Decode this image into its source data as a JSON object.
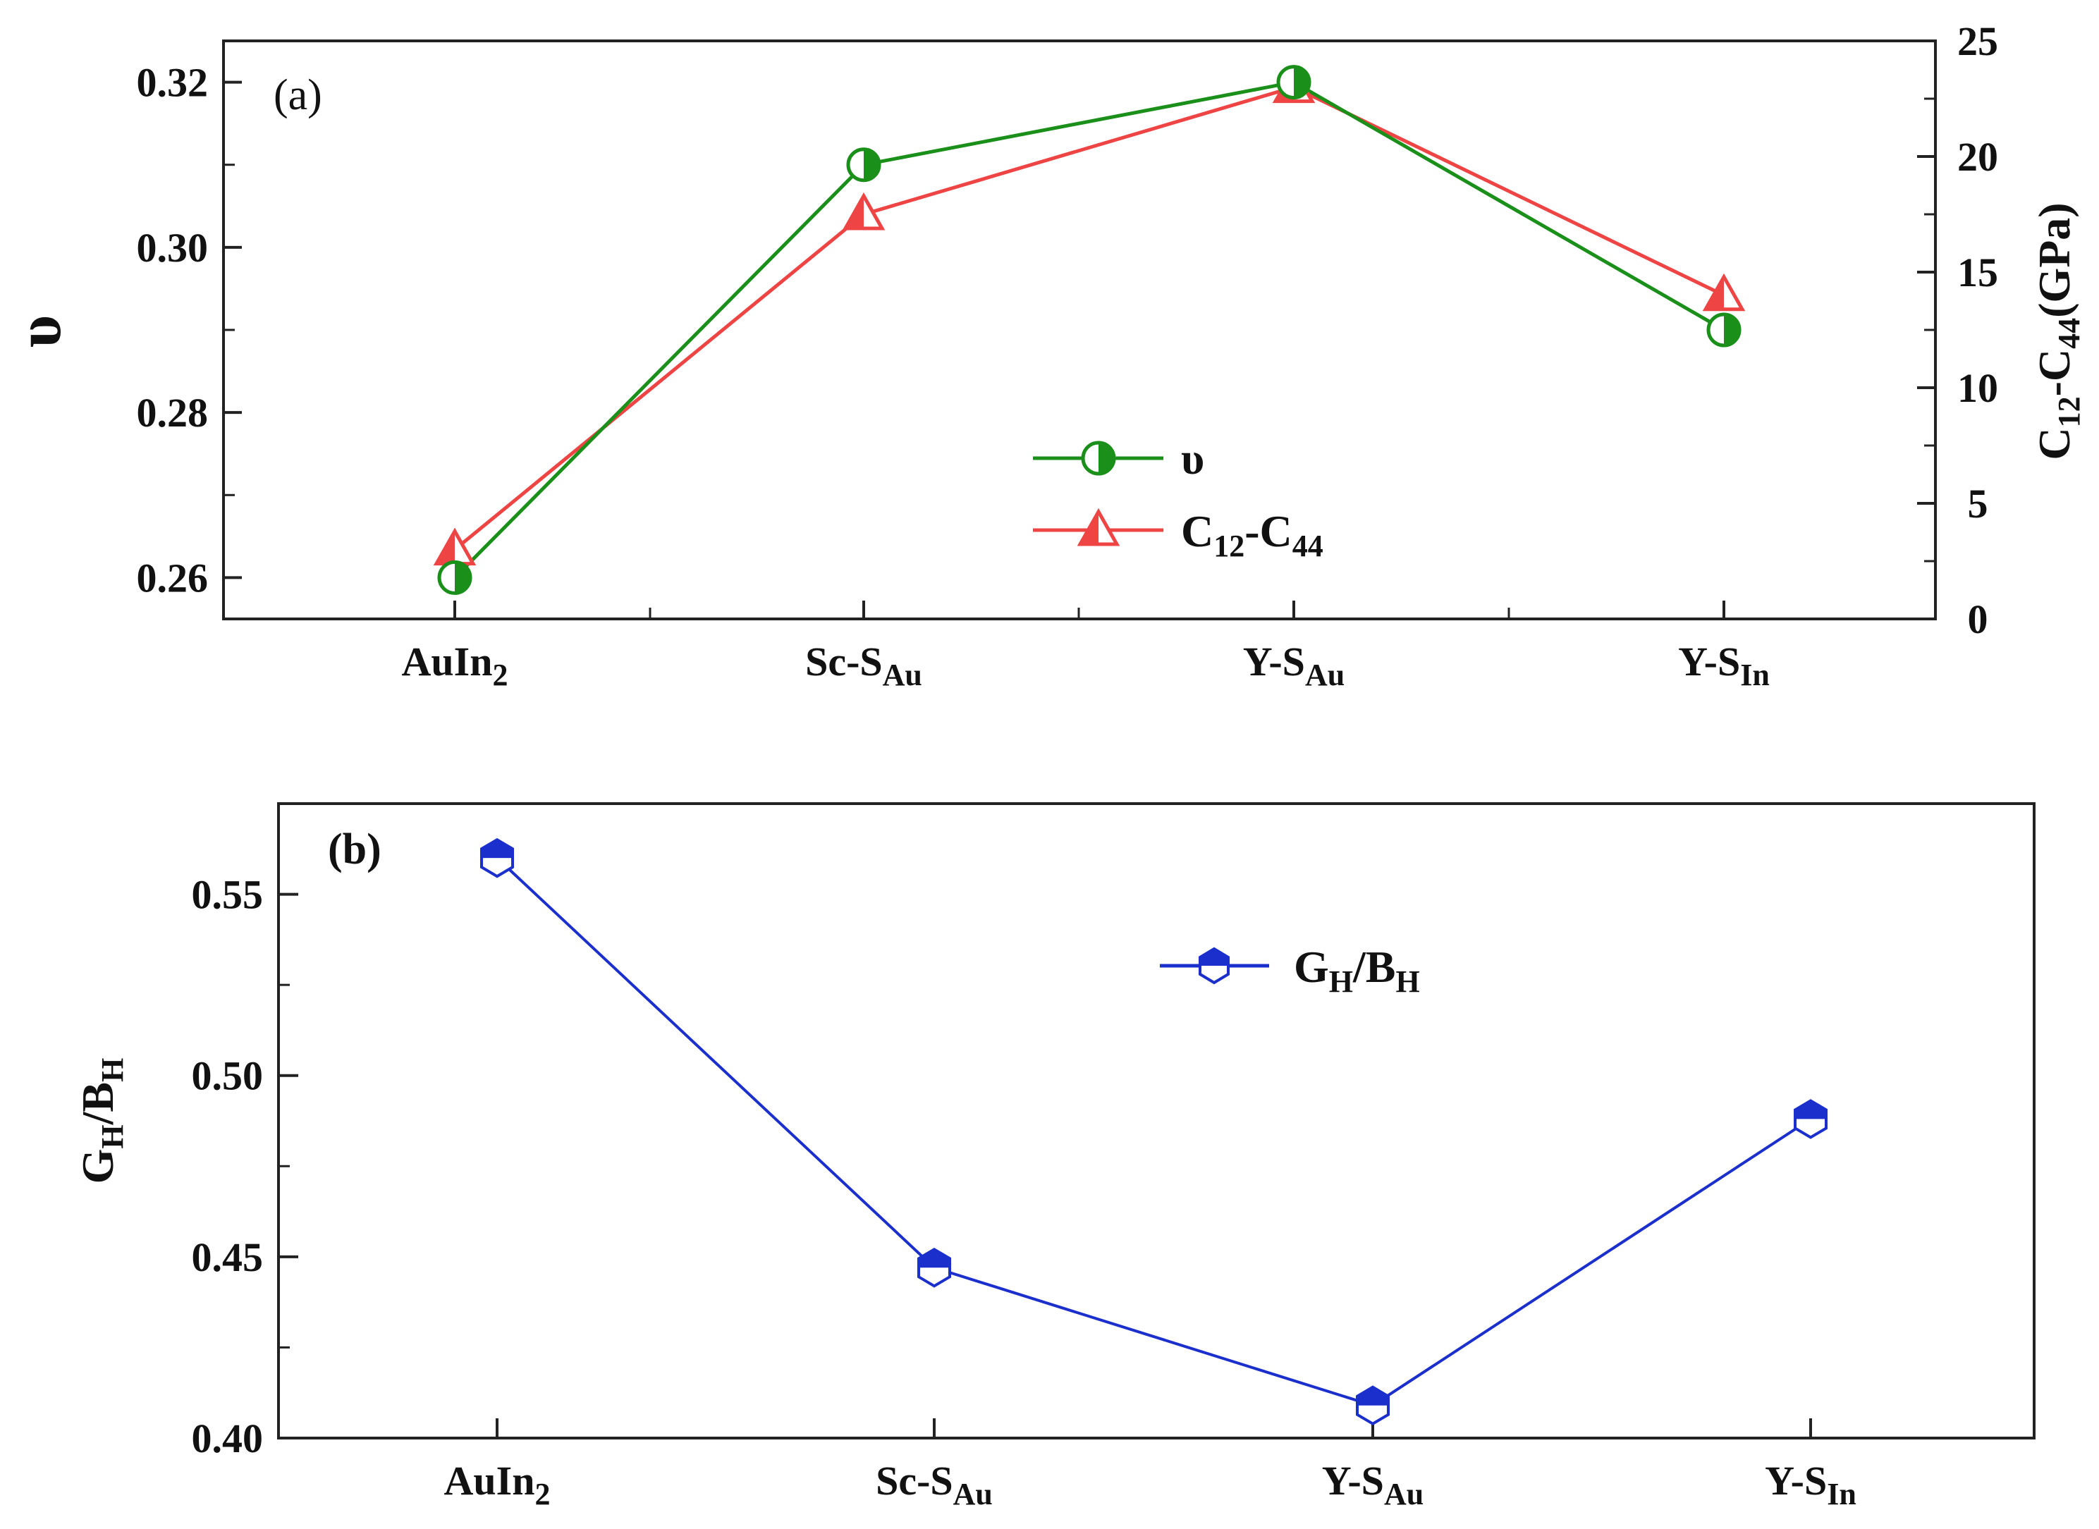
{
  "chart_data": [
    {
      "type": "line",
      "panel_label": "(a)",
      "categories": [
        {
          "base": "AuIn",
          "sub": "2"
        },
        {
          "base": "Sc-S",
          "sub": "Au"
        },
        {
          "base": "Y-S",
          "sub": "Au"
        },
        {
          "base": "Y-S",
          "sub": "In"
        }
      ],
      "ylabel_left": "υ",
      "ylabel_right": {
        "p1": "C",
        "s1": "12",
        "p2": "-C",
        "s2": "44",
        "p3": "(GPa)"
      },
      "ylim_left": [
        0.255,
        0.325
      ],
      "ylim_right": [
        0,
        25
      ],
      "yticks_left": [
        "0.26",
        "0.28",
        "0.30",
        "0.32"
      ],
      "yticks_right": [
        "0",
        "5",
        "10",
        "15",
        "20",
        "25"
      ],
      "series": [
        {
          "name": "υ",
          "axis": "left",
          "color": "#1a8f1a",
          "marker": "half-circle",
          "values": [
            0.26,
            0.31,
            0.32,
            0.29
          ]
        },
        {
          "name": "C12-C44",
          "axis": "right",
          "color": "#ee4444",
          "marker": "half-triangle",
          "values": [
            3.0,
            17.5,
            23.0,
            14.0
          ]
        }
      ],
      "legend": [
        {
          "text": "υ"
        },
        {
          "p1": "C",
          "s1": "12",
          "p2": "-C",
          "s2": "44"
        }
      ],
      "legend_position": "center-right"
    },
    {
      "type": "line",
      "panel_label": "(b)",
      "categories": [
        {
          "base": "AuIn",
          "sub": "2"
        },
        {
          "base": "Sc-S",
          "sub": "Au"
        },
        {
          "base": "Y-S",
          "sub": "Au"
        },
        {
          "base": "Y-S",
          "sub": "In"
        }
      ],
      "ylabel": {
        "p1": "G",
        "s1": "H",
        "p2": "/B",
        "s2": "H"
      },
      "ylim": [
        0.4,
        0.575
      ],
      "yticks": [
        "0.40",
        "0.45",
        "0.50",
        "0.55"
      ],
      "series": [
        {
          "name": "GH/BH",
          "color": "#1a2fcc",
          "marker": "half-hexagon",
          "values": [
            0.56,
            0.447,
            0.409,
            0.488
          ]
        }
      ],
      "legend": [
        {
          "p1": "G",
          "s1": "H",
          "p2": "/B",
          "s2": "H"
        }
      ],
      "legend_position": "top-center"
    }
  ]
}
